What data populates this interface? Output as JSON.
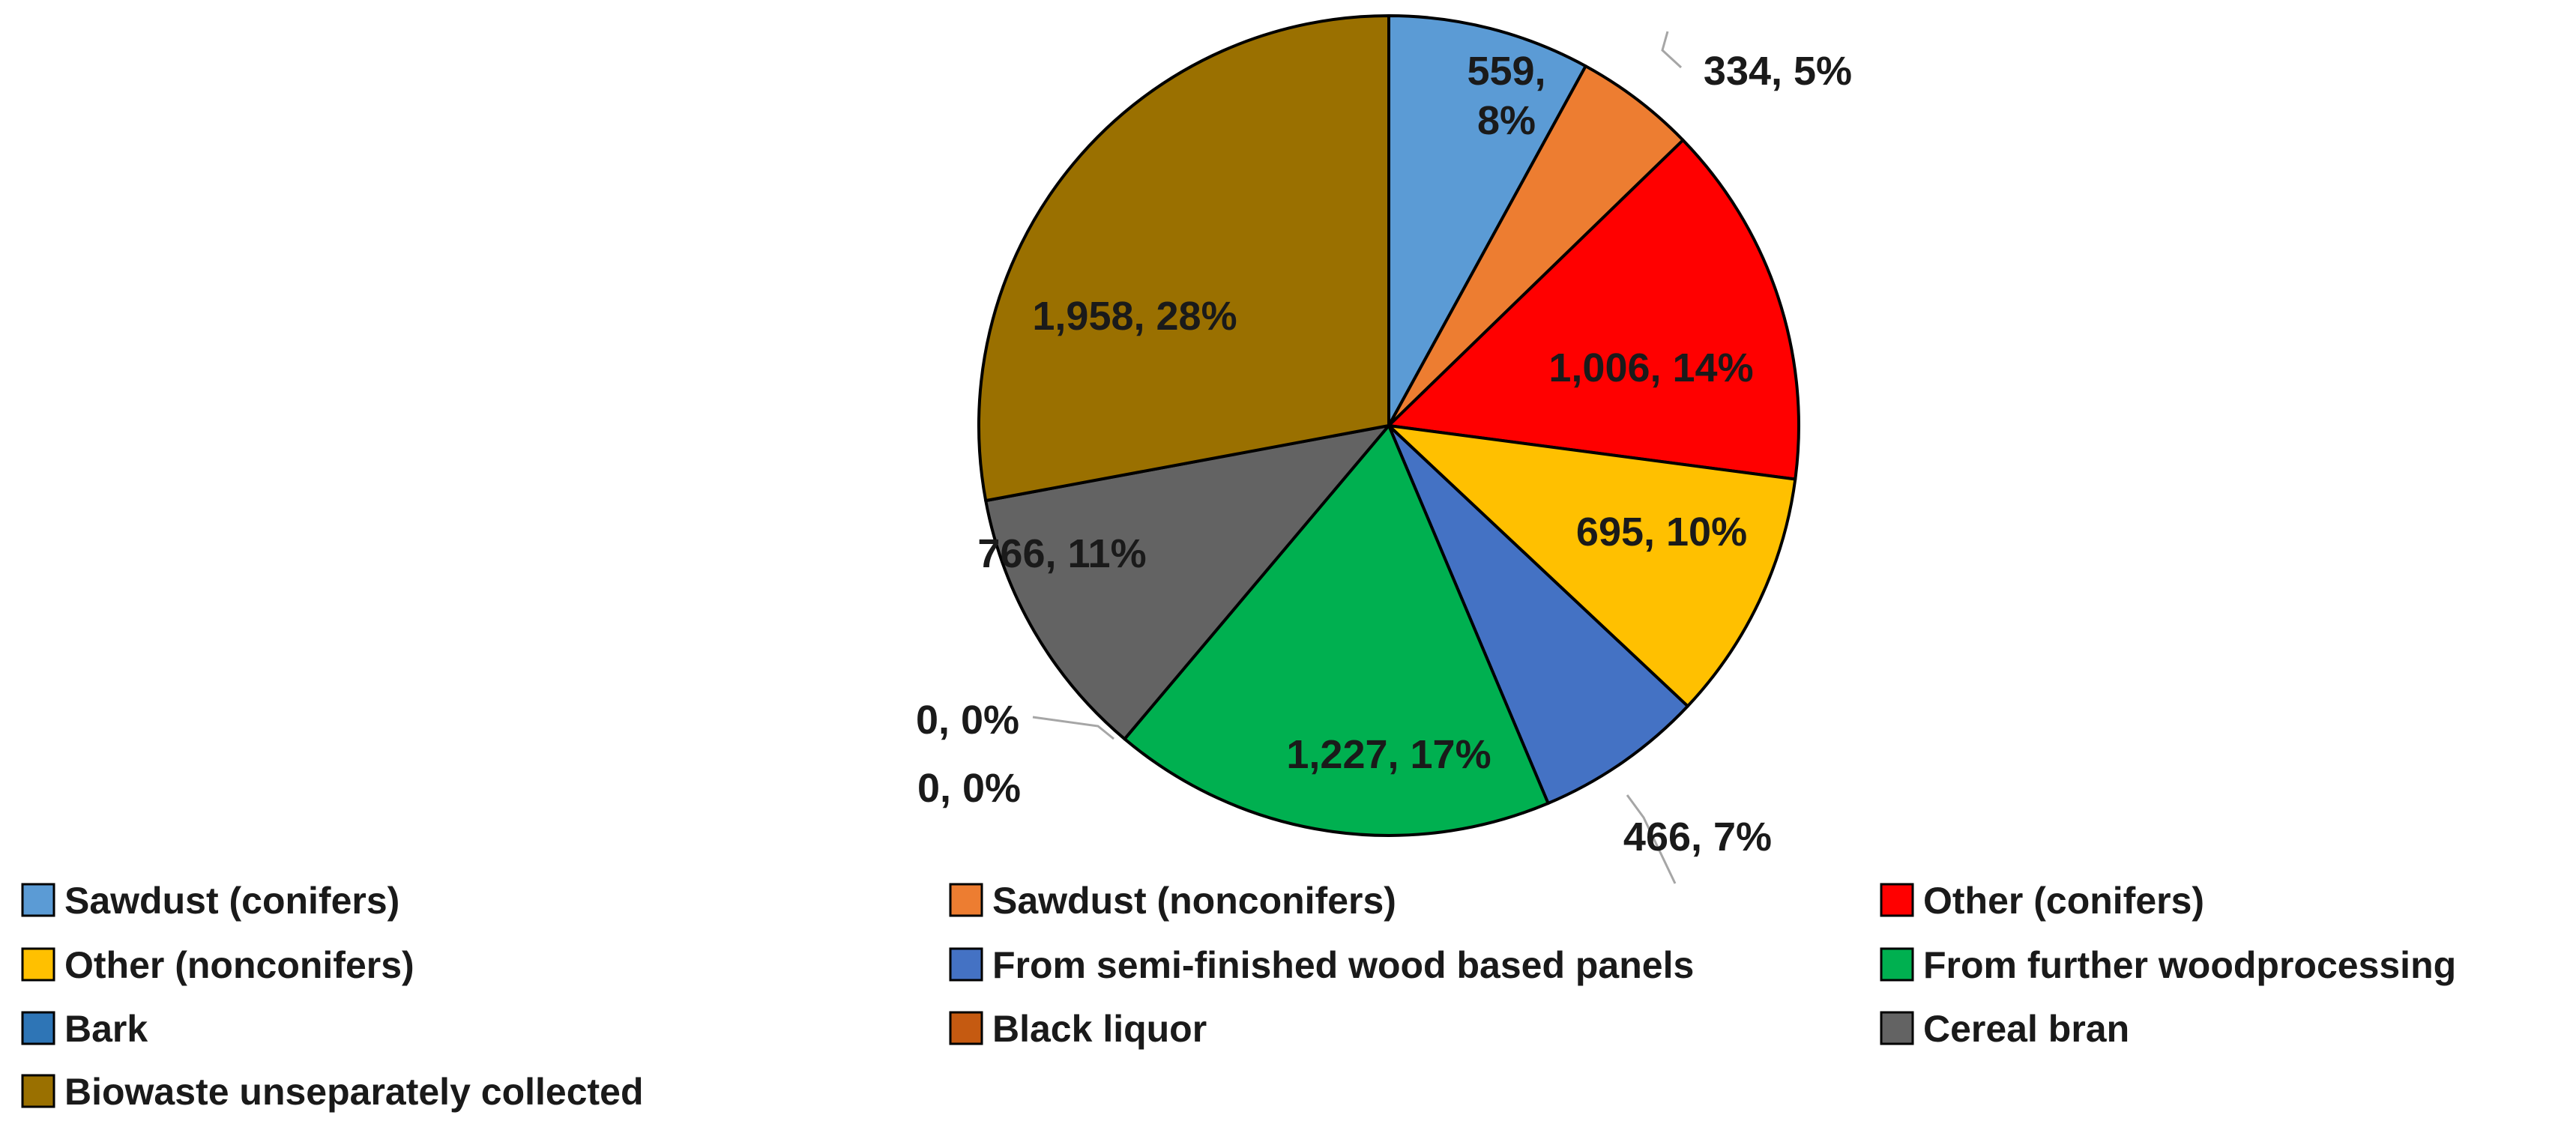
{
  "chart_data": {
    "type": "pie",
    "title": "",
    "slices": [
      {
        "name": "Sawdust (conifers)",
        "value": 559,
        "percent": "8%",
        "label": "559, 8%",
        "color": "#5B9BD5"
      },
      {
        "name": "Sawdust (nonconifers)",
        "value": 334,
        "percent": "5%",
        "label": "334, 5%",
        "color": "#ED7D31"
      },
      {
        "name": "Other (conifers)",
        "value": 1006,
        "percent": "14%",
        "label": "1,006, 14%",
        "color": "#FF0000"
      },
      {
        "name": "Other (nonconifers)",
        "value": 695,
        "percent": "10%",
        "label": "695, 10%",
        "color": "#FFC000"
      },
      {
        "name": "From semi-finished wood based panels",
        "value": 466,
        "percent": "7%",
        "label": "466, 7%",
        "color": "#4472C4"
      },
      {
        "name": "From further woodprocessing",
        "value": 1227,
        "percent": "17%",
        "label": "1,227, 17%",
        "color": "#00B050"
      },
      {
        "name": "Bark",
        "value": 0,
        "percent": "0%",
        "label": "0, 0%",
        "color": "#2E75B6"
      },
      {
        "name": "Black liquor",
        "value": 0,
        "percent": "0%",
        "label": "0, 0%",
        "color": "#C55A11"
      },
      {
        "name": "Cereal bran",
        "value": 766,
        "percent": "11%",
        "label": "766, 11%",
        "color": "#636363"
      },
      {
        "name": "Biowaste unseparately collected",
        "value": 1958,
        "percent": "28%",
        "label": "1,958, 28%",
        "color": "#9A7000"
      }
    ],
    "legend_position": "bottom"
  }
}
